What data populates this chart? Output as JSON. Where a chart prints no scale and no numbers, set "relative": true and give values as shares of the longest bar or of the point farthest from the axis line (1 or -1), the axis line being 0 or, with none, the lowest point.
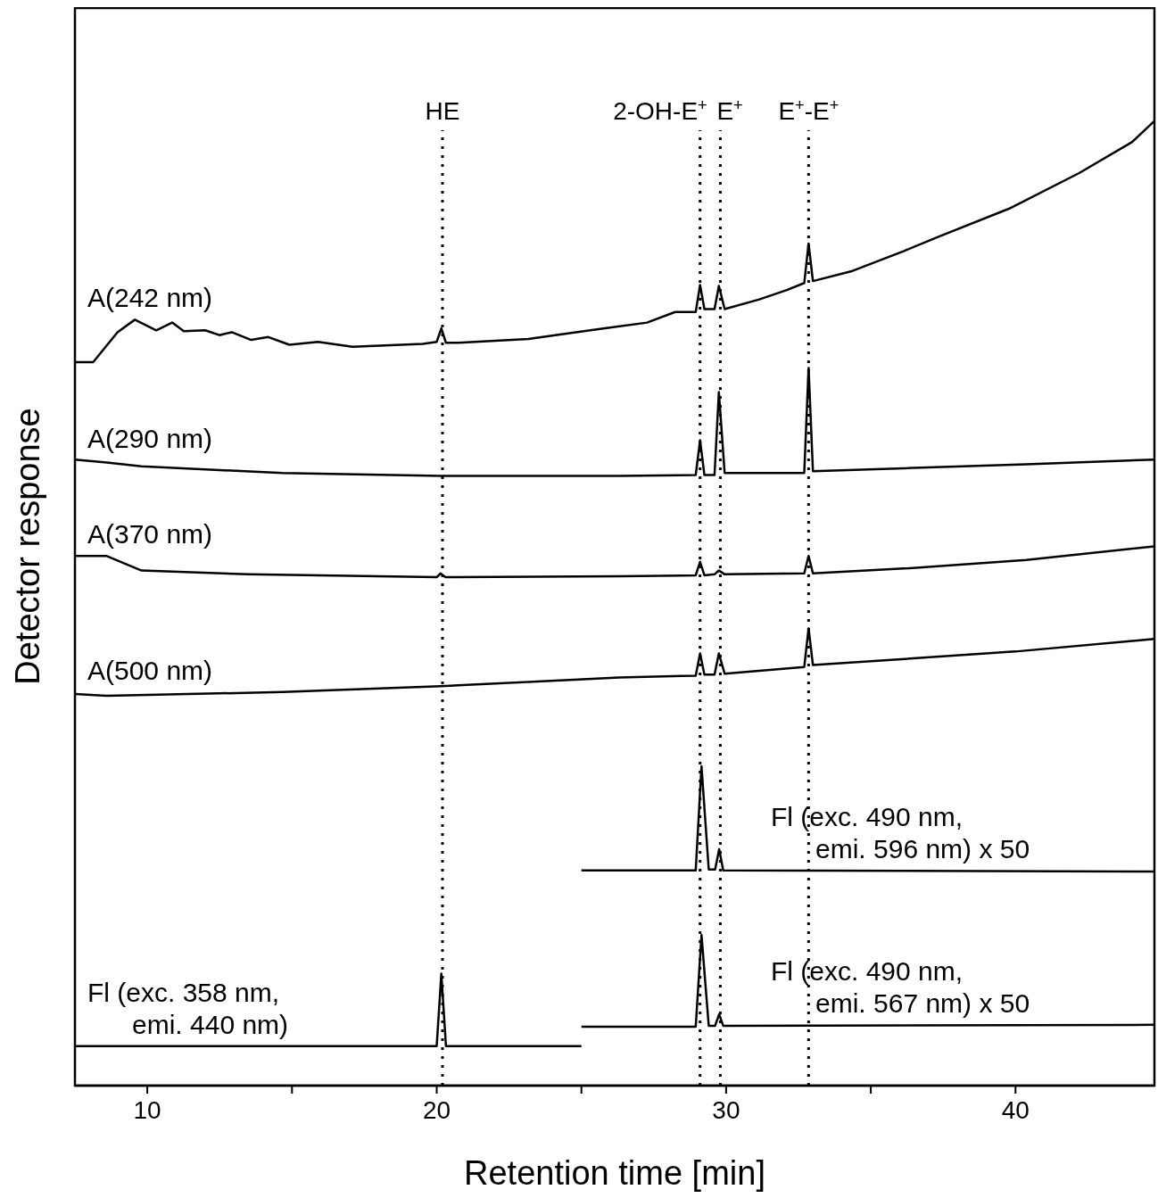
{
  "chart_data": {
    "type": "line",
    "xlabel": "Retention time [min]",
    "ylabel": "Detector response",
    "relative": true,
    "marker": "none",
    "line_style": "solid",
    "xlim": [
      7.5,
      44.8
    ],
    "xticks": [
      10,
      {
        "value": 15,
        "label": null
      },
      20,
      {
        "value": 25,
        "label": null
      },
      30,
      {
        "value": 35,
        "label": null
      },
      40
    ],
    "series": [
      {
        "name": "A(242 nm)",
        "color": "#000000",
        "x": [
          7.5,
          8.13,
          8.97,
          9.57,
          10.31,
          10.86,
          11.26,
          12.0,
          12.49,
          12.92,
          13.59,
          14.18,
          14.91,
          15.9,
          17.09,
          19.52,
          20.0,
          20.16,
          20.32,
          20.75,
          23.17,
          24.37,
          25.81,
          27.27,
          28.24,
          28.95,
          29.1,
          29.25,
          29.6,
          29.75,
          29.95,
          31.15,
          32.12,
          32.7,
          32.85,
          33.0,
          34.31,
          36.13,
          37.34,
          39.77,
          42.2,
          44.02,
          44.8
        ],
        "values": [
          0.75,
          0.75,
          0.781,
          0.794,
          0.783,
          0.791,
          0.782,
          0.783,
          0.778,
          0.781,
          0.773,
          0.776,
          0.768,
          0.771,
          0.766,
          0.769,
          0.771,
          0.785,
          0.77,
          0.77,
          0.774,
          0.779,
          0.785,
          0.791,
          0.802,
          0.802,
          0.83,
          0.805,
          0.805,
          0.829,
          0.805,
          0.815,
          0.825,
          0.832,
          0.873,
          0.834,
          0.844,
          0.865,
          0.88,
          0.909,
          0.946,
          0.978,
          1.0
        ]
      },
      {
        "name": "A(290 nm)",
        "color": "#000000",
        "x": [
          7.5,
          8.6,
          9.8,
          14.67,
          20.13,
          26.3,
          28.95,
          29.1,
          29.25,
          29.6,
          29.75,
          29.95,
          32.7,
          32.85,
          33.0,
          36.13,
          40.37,
          44.8
        ],
        "values": [
          0.649,
          0.646,
          0.642,
          0.635,
          0.632,
          0.632,
          0.633,
          0.669,
          0.633,
          0.633,
          0.719,
          0.635,
          0.635,
          0.744,
          0.637,
          0.64,
          0.644,
          0.649
        ]
      },
      {
        "name": "A(370 nm)",
        "color": "#000000",
        "x": [
          7.5,
          8.6,
          9.8,
          13.46,
          20.0,
          20.13,
          20.3,
          26.3,
          28.95,
          29.1,
          29.25,
          29.6,
          29.75,
          29.95,
          32.7,
          32.85,
          33.0,
          36.13,
          40.37,
          44.8
        ],
        "values": [
          0.549,
          0.549,
          0.534,
          0.53,
          0.527,
          0.531,
          0.527,
          0.528,
          0.529,
          0.543,
          0.529,
          0.53,
          0.534,
          0.53,
          0.531,
          0.549,
          0.531,
          0.536,
          0.545,
          0.559
        ]
      },
      {
        "name": "A(500 nm)",
        "color": "#000000",
        "x": [
          7.5,
          8.6,
          14.67,
          20.13,
          26.3,
          28.95,
          29.1,
          29.25,
          29.6,
          29.75,
          29.95,
          32.7,
          32.85,
          33.0,
          40.0,
          44.8
        ],
        "values": [
          0.406,
          0.404,
          0.408,
          0.414,
          0.423,
          0.425,
          0.448,
          0.426,
          0.426,
          0.448,
          0.427,
          0.434,
          0.474,
          0.436,
          0.45,
          0.463
        ]
      },
      {
        "name": "Fl (exc. 490 nm, emi. 596 nm) x 50",
        "color": "#000000",
        "x": [
          25.0,
          28.95,
          29.15,
          29.4,
          29.62,
          29.76,
          29.9,
          44.8
        ],
        "values": [
          0.223,
          0.223,
          0.331,
          0.224,
          0.224,
          0.245,
          0.223,
          0.222
        ]
      },
      {
        "name": "Fl (exc. 358 nm, emi. 440 nm)",
        "color": "#000000",
        "x": [
          7.5,
          20.0,
          20.16,
          20.32,
          25.0
        ],
        "values": [
          0.041,
          0.041,
          0.116,
          0.041,
          0.041
        ]
      },
      {
        "name": "Fl (exc. 490 nm, emi. 567 nm) x 50",
        "color": "#000000",
        "x": [
          25.0,
          28.95,
          29.15,
          29.4,
          29.62,
          29.76,
          29.9,
          44.8
        ],
        "values": [
          0.061,
          0.061,
          0.156,
          0.062,
          0.062,
          0.074,
          0.062,
          0.063
        ]
      }
    ],
    "ref_lines": [
      {
        "axis": "x",
        "value": 20.2,
        "label": "HE",
        "color": "#000000",
        "line_style": "dotted"
      },
      {
        "axis": "x",
        "value": 29.1,
        "label": "2-OH-E$^{+}$",
        "color": "#000000",
        "line_style": "dotted"
      },
      {
        "axis": "x",
        "value": 29.8,
        "label": "E$^{+}$",
        "color": "#000000",
        "line_style": "dotted"
      },
      {
        "axis": "x",
        "value": 32.85,
        "label": "E$^{+}$-E$^{+}$",
        "color": "#000000",
        "line_style": "dotted"
      }
    ]
  }
}
